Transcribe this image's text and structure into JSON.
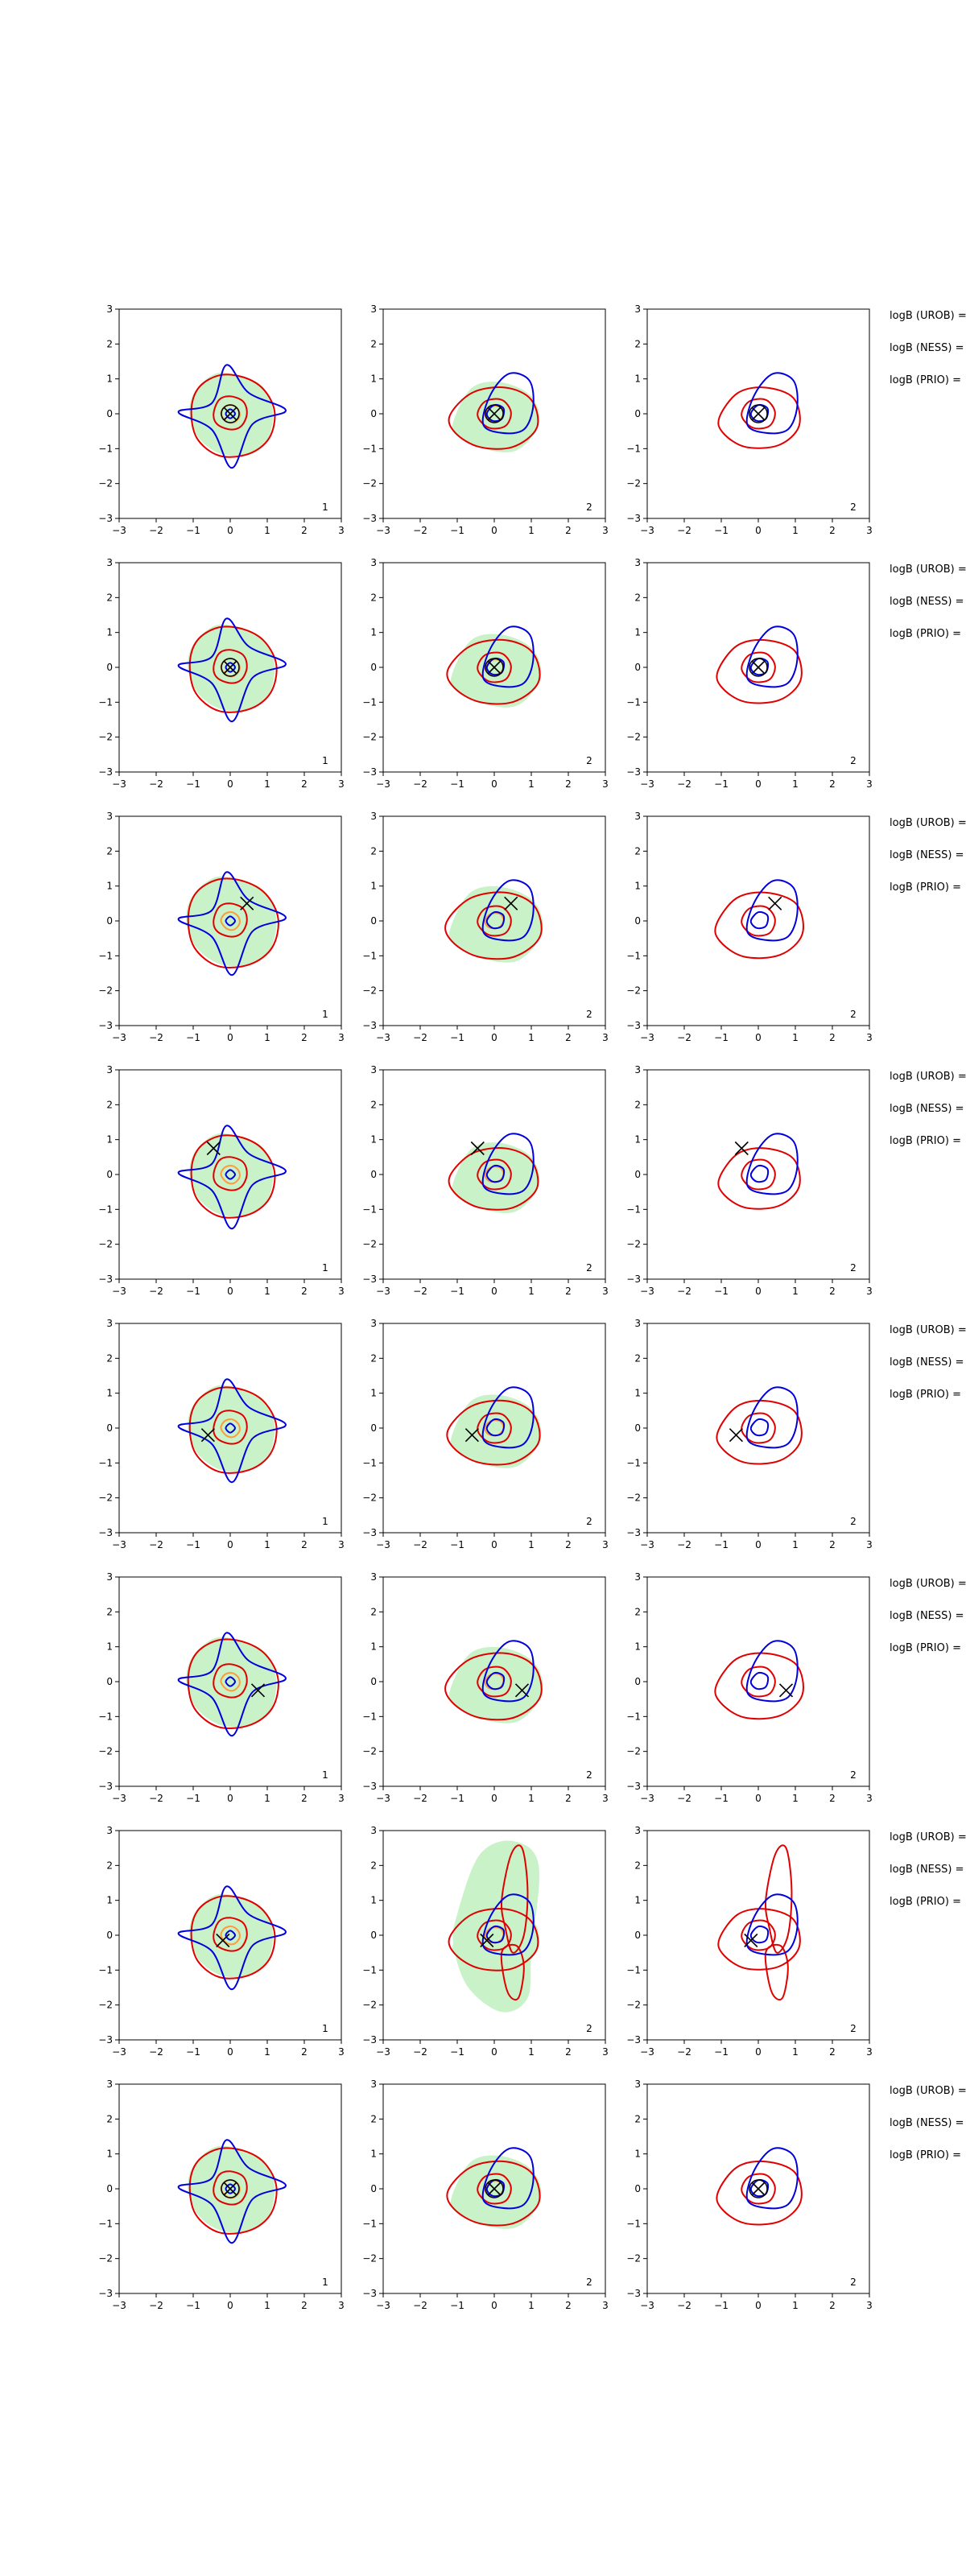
{
  "figure": {
    "rows": 8,
    "cols": 3,
    "colors": {
      "red": "#e00000",
      "blue": "#0000dd",
      "green_fill": "#c9f2c9",
      "orange": "#ff9a3c",
      "marker": "#000000"
    }
  },
  "chart_data": {
    "type": "contour",
    "xlim": [
      -3,
      3
    ],
    "ylim": [
      -3,
      3
    ],
    "xticks": [
      "−3",
      "−2",
      "−1",
      "0",
      "1",
      "2",
      "3"
    ],
    "yticks": [
      "3",
      "2",
      "1",
      "0",
      "−1",
      "−2",
      "−3"
    ],
    "panel_corner_labels": [
      "1",
      "2",
      "2"
    ],
    "side_labels": [
      "logB (UROB) =",
      "logB (NESS) =",
      "logB (PRIO) ="
    ],
    "contours": {
      "1": {
        "green": [
          [
            -1.1,
            0
          ],
          [
            -0.95,
            0.65
          ],
          [
            -0.4,
            1.15
          ],
          [
            0.2,
            1.1
          ],
          [
            0.85,
            0.8
          ],
          [
            1.15,
            0.1
          ],
          [
            1.0,
            -0.75
          ],
          [
            0.45,
            -1.15
          ],
          [
            -0.25,
            -1.15
          ],
          [
            -0.85,
            -0.7
          ]
        ],
        "red_outer": [
          [
            -1.05,
            0.1
          ],
          [
            -0.85,
            0.75
          ],
          [
            -0.3,
            1.1
          ],
          [
            0.35,
            1.05
          ],
          [
            0.9,
            0.7
          ],
          [
            1.2,
            0.05
          ],
          [
            1.05,
            -0.7
          ],
          [
            0.5,
            -1.15
          ],
          [
            -0.3,
            -1.2
          ],
          [
            -0.9,
            -0.7
          ]
        ],
        "red_inner": [
          [
            -0.45,
            0
          ],
          [
            -0.3,
            0.4
          ],
          [
            0,
            0.5
          ],
          [
            0.35,
            0.35
          ],
          [
            0.45,
            0
          ],
          [
            0.3,
            -0.35
          ],
          [
            0,
            -0.45
          ],
          [
            -0.35,
            -0.3
          ]
        ],
        "orange": [
          [
            -0.25,
            0
          ],
          [
            -0.15,
            0.2
          ],
          [
            0.05,
            0.25
          ],
          [
            0.22,
            0.12
          ],
          [
            0.25,
            -0.08
          ],
          [
            0.1,
            -0.25
          ],
          [
            -0.1,
            -0.22
          ]
        ],
        "blue_outer": [
          [
            -1.4,
            0.05
          ],
          [
            -0.5,
            0.3
          ],
          [
            -0.1,
            1.4
          ],
          [
            0.5,
            0.6
          ],
          [
            1.5,
            0.1
          ],
          [
            0.6,
            -0.3
          ],
          [
            0.05,
            -1.55
          ],
          [
            -0.5,
            -0.45
          ]
        ],
        "blue_inner": [
          [
            -0.12,
            0
          ],
          [
            0,
            0.13
          ],
          [
            0.13,
            0
          ],
          [
            0,
            -0.13
          ]
        ]
      },
      "2": {
        "green": [
          [
            -1.1,
            -0.2
          ],
          [
            -0.6,
            0.75
          ],
          [
            0.2,
            0.9
          ],
          [
            1.0,
            0.5
          ],
          [
            1.2,
            -0.3
          ],
          [
            0.6,
            -1.05
          ],
          [
            -0.3,
            -1.0
          ],
          [
            -1.0,
            -0.6
          ]
        ],
        "red_outer": [
          [
            -1.2,
            -0.05
          ],
          [
            -0.6,
            0.6
          ],
          [
            0.3,
            0.75
          ],
          [
            1.0,
            0.4
          ],
          [
            1.15,
            -0.4
          ],
          [
            0.5,
            -0.95
          ],
          [
            -0.4,
            -0.95
          ],
          [
            -1.05,
            -0.55
          ]
        ],
        "red_inner": [
          [
            -0.45,
            -0.05
          ],
          [
            -0.25,
            0.35
          ],
          [
            0.2,
            0.4
          ],
          [
            0.45,
            0.05
          ],
          [
            0.3,
            -0.35
          ],
          [
            -0.15,
            -0.4
          ]
        ],
        "orange": [
          [
            -0.25,
            0
          ],
          [
            -0.1,
            0.2
          ],
          [
            0.15,
            0.2
          ],
          [
            0.25,
            0
          ],
          [
            0.1,
            -0.2
          ],
          [
            -0.15,
            -0.18
          ]
        ],
        "blue_outer": [
          [
            -0.3,
            -0.3
          ],
          [
            -0.1,
            0.55
          ],
          [
            0.4,
            1.15
          ],
          [
            0.95,
            0.95
          ],
          [
            1.05,
            0.2
          ],
          [
            0.8,
            -0.45
          ],
          [
            0.2,
            -0.55
          ]
        ],
        "blue_inner": [
          [
            -0.2,
            0
          ],
          [
            0,
            0.25
          ],
          [
            0.25,
            0.15
          ],
          [
            0.2,
            -0.15
          ],
          [
            -0.05,
            -0.2
          ]
        ]
      },
      "3": {
        "red_outer": [
          [
            -1.05,
            -0.1
          ],
          [
            -0.55,
            0.6
          ],
          [
            0.2,
            0.75
          ],
          [
            0.95,
            0.45
          ],
          [
            1.1,
            -0.35
          ],
          [
            0.55,
            -0.9
          ],
          [
            -0.35,
            -0.95
          ],
          [
            -0.95,
            -0.55
          ]
        ],
        "red_inner": [
          [
            -0.45,
            -0.05
          ],
          [
            -0.25,
            0.35
          ],
          [
            0.2,
            0.4
          ],
          [
            0.45,
            0.05
          ],
          [
            0.3,
            -0.35
          ],
          [
            -0.15,
            -0.4
          ]
        ],
        "blue_outer": [
          [
            -0.3,
            -0.3
          ],
          [
            -0.1,
            0.55
          ],
          [
            0.4,
            1.15
          ],
          [
            0.95,
            0.95
          ],
          [
            1.05,
            0.2
          ],
          [
            0.8,
            -0.45
          ],
          [
            0.2,
            -0.55
          ]
        ],
        "blue_inner": [
          [
            -0.2,
            0
          ],
          [
            0,
            0.25
          ],
          [
            0.25,
            0.15
          ],
          [
            0.2,
            -0.15
          ],
          [
            -0.05,
            -0.2
          ]
        ]
      }
    },
    "markers": [
      {
        "row": 1,
        "x": 0.0,
        "y": 0.0
      },
      {
        "row": 2,
        "x": 0.0,
        "y": 0.0
      },
      {
        "row": 3,
        "x": 0.45,
        "y": 0.5
      },
      {
        "row": 4,
        "x": -0.45,
        "y": 0.75
      },
      {
        "row": 5,
        "x": -0.6,
        "y": -0.2
      },
      {
        "row": 6,
        "x": 0.75,
        "y": -0.25
      },
      {
        "row": 7,
        "x": -0.2,
        "y": -0.15
      },
      {
        "row": 8,
        "x": 0.0,
        "y": 0.0
      }
    ],
    "row7_red_extra": [
      [
        [
          0.2,
          1.0
        ],
        [
          0.45,
          2.3
        ],
        [
          0.75,
          2.5
        ],
        [
          0.9,
          1.3
        ],
        [
          0.8,
          0.0
        ],
        [
          0.5,
          -0.5
        ],
        [
          0.3,
          0.2
        ]
      ],
      [
        [
          0.2,
          -0.5
        ],
        [
          0.35,
          -1.6
        ],
        [
          0.65,
          -1.8
        ],
        [
          0.8,
          -0.9
        ],
        [
          0.6,
          -0.3
        ]
      ]
    ],
    "row7_green_extra": [
      [
        -1.0,
        0.6
      ],
      [
        -0.4,
        2.3
      ],
      [
        0.5,
        2.7
      ],
      [
        1.2,
        2.0
      ],
      [
        1.0,
        -0.5
      ],
      [
        0.9,
        -1.8
      ],
      [
        0.2,
        -2.2
      ],
      [
        -0.7,
        -1.5
      ],
      [
        -1.1,
        -0.3
      ]
    ]
  }
}
